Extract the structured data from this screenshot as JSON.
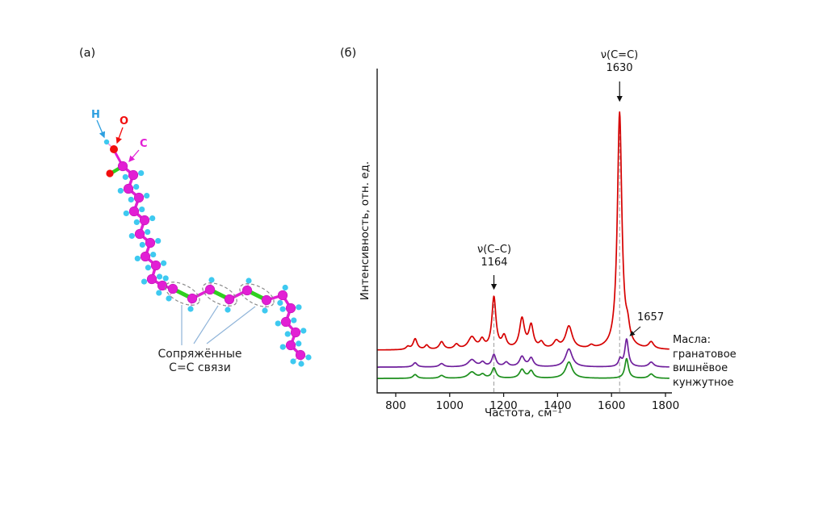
{
  "figure": {
    "panel_a_label": "(а)",
    "panel_b_label": "(б)"
  },
  "molecule": {
    "atom_labels": {
      "h": "H",
      "o": "O",
      "c": "C"
    },
    "caption_line1": "Сопряжённые",
    "caption_line2": "С=С связи",
    "colors": {
      "carbon": "#e21fd4",
      "hydrogen": "#3ec9f0",
      "oxygen": "#f20d0d",
      "double_bond": "#2fd01f",
      "hbond": "#f29ae2",
      "ellipse": "#8a8a8a",
      "connector": "#8fb4d9"
    }
  },
  "chart_data": {
    "type": "line",
    "title": "",
    "xlabel": "Частота, см⁻¹",
    "ylabel": "Интенсивность, отн. ед.",
    "xlim": [
      730,
      1815
    ],
    "ylim": [
      0,
      1.35
    ],
    "x_ticks": [
      800,
      1000,
      1200,
      1400,
      1600,
      1800
    ],
    "grid": false,
    "dashed_guides_x": [
      1164,
      1630
    ],
    "legend": {
      "title": "Масла:",
      "position": "right",
      "entries": [
        "гранатовое",
        "вишнёвое",
        "кунжутное"
      ]
    },
    "annotations": [
      {
        "text_lines": [
          "ν(C=C)",
          "1630"
        ],
        "x": 1630
      },
      {
        "text_lines": [
          "ν(C–C)",
          "1164"
        ],
        "x": 1164
      },
      {
        "text_lines": [
          "1657"
        ],
        "x": 1657
      }
    ],
    "series": [
      {
        "name": "гранатовое",
        "color": "#d60000",
        "offset": 0.178,
        "peaks": [
          [
            845,
            0.012,
            8
          ],
          [
            872,
            0.045,
            9
          ],
          [
            915,
            0.018,
            8
          ],
          [
            970,
            0.032,
            10
          ],
          [
            1025,
            0.02,
            10
          ],
          [
            1082,
            0.05,
            16
          ],
          [
            1120,
            0.035,
            10
          ],
          [
            1164,
            0.215,
            9
          ],
          [
            1202,
            0.05,
            10
          ],
          [
            1268,
            0.125,
            11
          ],
          [
            1302,
            0.095,
            10
          ],
          [
            1340,
            0.025,
            10
          ],
          [
            1395,
            0.03,
            12
          ],
          [
            1442,
            0.095,
            15
          ],
          [
            1525,
            0.012,
            10
          ],
          [
            1630,
            0.985,
            10
          ],
          [
            1660,
            0.06,
            9
          ],
          [
            1747,
            0.028,
            11
          ]
        ]
      },
      {
        "name": "вишнёвое",
        "color": "#6f1f9c",
        "offset": 0.107,
        "peaks": [
          [
            872,
            0.018,
            9
          ],
          [
            970,
            0.014,
            10
          ],
          [
            1082,
            0.03,
            16
          ],
          [
            1122,
            0.018,
            10
          ],
          [
            1164,
            0.05,
            9
          ],
          [
            1210,
            0.018,
            10
          ],
          [
            1268,
            0.042,
            11
          ],
          [
            1302,
            0.036,
            10
          ],
          [
            1442,
            0.075,
            15
          ],
          [
            1632,
            0.03,
            7
          ],
          [
            1656,
            0.115,
            8
          ],
          [
            1747,
            0.02,
            11
          ]
        ]
      },
      {
        "name": "кунжутное",
        "color": "#1d8f1d",
        "offset": 0.06,
        "peaks": [
          [
            872,
            0.016,
            9
          ],
          [
            970,
            0.012,
            10
          ],
          [
            1082,
            0.026,
            16
          ],
          [
            1122,
            0.015,
            10
          ],
          [
            1164,
            0.042,
            9
          ],
          [
            1268,
            0.036,
            11
          ],
          [
            1302,
            0.03,
            10
          ],
          [
            1442,
            0.068,
            15
          ],
          [
            1656,
            0.082,
            8
          ],
          [
            1747,
            0.018,
            11
          ]
        ]
      }
    ]
  }
}
